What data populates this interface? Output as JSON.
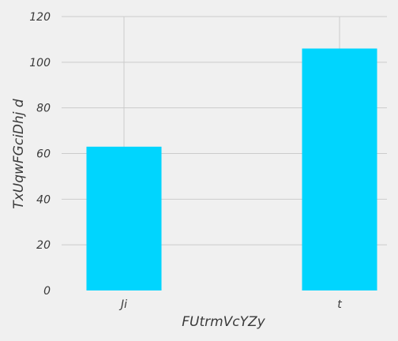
{
  "chart_data": {
    "type": "bar",
    "categories": [
      "Ji",
      "t"
    ],
    "values": [
      63,
      106
    ],
    "title": "",
    "xlabel": "FUtrmVcYZy",
    "ylabel": "TxUqwFGciDhj d",
    "ylim": [
      0,
      120
    ],
    "yticks": [
      0,
      20,
      40,
      60,
      80,
      100,
      120
    ],
    "grid": true,
    "bar_color": "#00d5fe",
    "background_color": "#f0f0f0",
    "grid_color": "#cbcbcb"
  }
}
